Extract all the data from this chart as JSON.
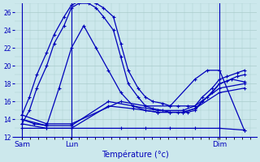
{
  "xlabel": "Température (°c)",
  "bg_color": "#cce8ec",
  "grid_color": "#aacccc",
  "line_color": "#0000bb",
  "marker": "+",
  "y_min": 12,
  "y_max": 27,
  "y_ticks": [
    12,
    14,
    16,
    18,
    20,
    22,
    24,
    26
  ],
  "day_ticks": [
    {
      "label": "Sam",
      "x": 1
    },
    {
      "label": "Lun",
      "x": 3
    },
    {
      "label": "Dim",
      "x": 9
    }
  ],
  "vlines": [
    1,
    3,
    9
  ],
  "lines": [
    {
      "x": [
        1,
        1.3,
        1.6,
        2.0,
        2.3,
        2.7,
        3.0,
        3.3,
        3.7,
        4.0,
        4.3,
        4.7,
        5.0,
        5.3,
        5.7,
        6.0,
        6.3,
        6.7,
        7.0,
        7.3,
        7.7,
        8.0,
        8.3,
        8.7,
        9.0,
        9.3,
        9.7,
        10.0
      ],
      "y": [
        14.5,
        16.5,
        19.0,
        21.5,
        23.5,
        25.5,
        26.8,
        27.2,
        27.2,
        27.0,
        26.5,
        25.5,
        22.5,
        19.5,
        17.5,
        16.5,
        16.0,
        15.8,
        15.5,
        15.5,
        15.5,
        15.5,
        16.5,
        17.5,
        18.5,
        18.8,
        19.2,
        19.5
      ]
    },
    {
      "x": [
        1,
        1.3,
        1.6,
        2.0,
        2.3,
        2.7,
        3.0,
        3.3,
        3.7,
        4.0,
        4.3,
        4.7,
        5.0,
        5.3,
        5.7,
        6.0,
        6.3,
        6.7,
        7.0,
        7.3,
        7.7,
        8.0,
        8.3,
        8.7,
        9.0,
        9.3,
        9.7,
        10.0
      ],
      "y": [
        13.5,
        15.0,
        17.5,
        20.0,
        22.5,
        24.5,
        26.5,
        27.0,
        27.0,
        26.5,
        25.5,
        24.0,
        21.0,
        18.0,
        16.5,
        15.5,
        15.2,
        15.0,
        14.8,
        14.8,
        14.8,
        15.0,
        16.0,
        17.0,
        18.0,
        18.3,
        18.8,
        19.0
      ]
    },
    {
      "x": [
        1,
        1.5,
        2.0,
        2.5,
        3.0,
        3.5,
        4.0,
        4.5,
        5.0,
        5.5,
        6.0,
        6.5,
        7.0,
        7.5,
        8.0,
        8.5,
        9.0,
        9.5,
        10.0
      ],
      "y": [
        14.0,
        13.5,
        13.3,
        17.5,
        22.0,
        24.5,
        22.0,
        19.5,
        17.0,
        15.5,
        15.0,
        14.8,
        14.8,
        14.8,
        15.2,
        16.5,
        18.0,
        18.5,
        18.2
      ]
    },
    {
      "x": [
        1,
        2.0,
        3.0,
        4.5,
        5.5,
        6.5,
        7.5,
        8.0,
        9.0,
        10.0
      ],
      "y": [
        14.0,
        13.3,
        13.3,
        16.0,
        15.5,
        15.0,
        15.0,
        15.5,
        17.5,
        18.0
      ]
    },
    {
      "x": [
        1,
        2.0,
        3.0,
        4.5,
        5.5,
        6.5,
        7.5,
        8.0,
        9.0,
        10.0
      ],
      "y": [
        13.5,
        13.0,
        13.0,
        15.5,
        15.2,
        14.8,
        14.8,
        15.2,
        17.0,
        17.5
      ]
    },
    {
      "x": [
        1,
        2.0,
        3.0,
        5.0,
        6.0,
        7.0,
        8.0,
        8.5,
        9.0,
        10.0
      ],
      "y": [
        14.5,
        13.5,
        13.5,
        16.0,
        15.5,
        15.5,
        18.5,
        19.5,
        19.5,
        12.8
      ]
    },
    {
      "x": [
        1,
        2.0,
        3.0,
        5.0,
        6.0,
        7.0,
        8.0,
        9.0,
        10.0
      ],
      "y": [
        13.0,
        13.0,
        13.0,
        13.0,
        13.0,
        13.0,
        13.0,
        13.0,
        12.8
      ]
    }
  ]
}
